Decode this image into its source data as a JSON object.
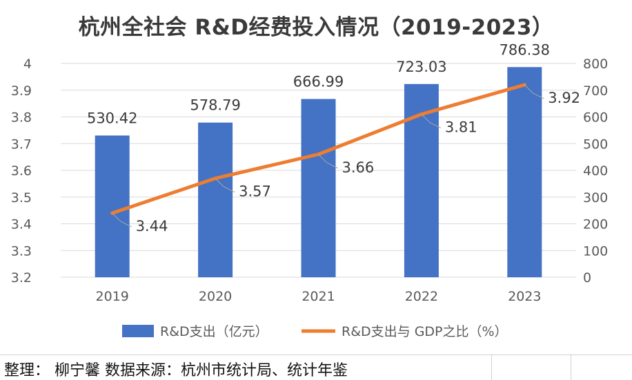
{
  "colors": {
    "bar": "#4472c4",
    "line": "#ed7d31",
    "grid": "#d9d9d9",
    "text": "#595959",
    "leader": "#a6a6a6"
  },
  "chart_data": {
    "type": "bar",
    "title": "杭州全社会 R&D经费投入情况（2019-2023）",
    "categories": [
      "2019",
      "2020",
      "2021",
      "2022",
      "2023"
    ],
    "series": [
      {
        "name": "R&D支出（亿元）",
        "type": "bar",
        "axis": "right",
        "values": [
          530.42,
          578.79,
          666.99,
          723.03,
          786.38
        ]
      },
      {
        "name": "R&D支出与 GDP之比（%）",
        "type": "line",
        "axis": "left",
        "values": [
          3.44,
          3.57,
          3.66,
          3.81,
          3.92
        ]
      }
    ],
    "y_left": {
      "range": [
        3.2,
        4.0
      ],
      "step": 0.1,
      "ticks": [
        "3.2",
        "3.3",
        "3.4",
        "3.5",
        "3.6",
        "3.7",
        "3.8",
        "3.9",
        "4"
      ]
    },
    "y_right": {
      "range": [
        0,
        800
      ],
      "step": 100,
      "ticks": [
        "0",
        "100",
        "200",
        "300",
        "400",
        "500",
        "600",
        "700",
        "800"
      ]
    },
    "grid": true,
    "legend_position": "bottom"
  },
  "footer": {
    "text": "整理： 柳宁馨   数据来源：杭州市统计局、统计年鉴"
  }
}
